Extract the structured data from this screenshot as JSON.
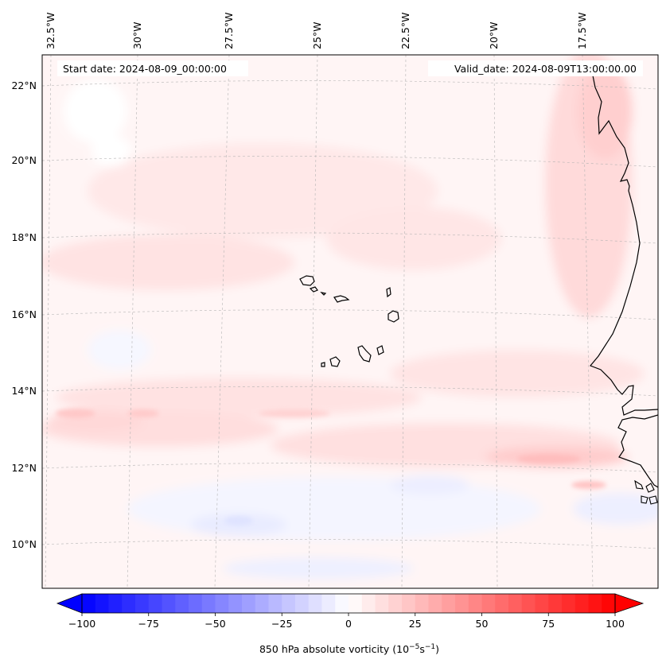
{
  "map": {
    "start_date_label": "Start date: 2024-08-09_00:00:00",
    "valid_date_label": "Valid_date: 2024-08-09T13:00:00.00",
    "field": "850 hPa absolute vorticity",
    "lon_labels": [
      "32.5°W",
      "30°W",
      "27.5°W",
      "25°W",
      "22.5°W",
      "20°W",
      "17.5°W"
    ],
    "lat_labels": [
      "22°N",
      "20°N",
      "18°N",
      "16°N",
      "14°N",
      "12°N",
      "10°N"
    ],
    "gridlines": "dashed",
    "coastline_color": "#000000"
  },
  "colorbar": {
    "label_prefix": "850 hPa absolute vorticity (10",
    "label_exp1": "−5",
    "label_mid": "s",
    "label_exp2": "−1",
    "label_suffix": ")",
    "ticks": [
      "−100",
      "−75",
      "−50",
      "−25",
      "0",
      "25",
      "50",
      "75",
      "100"
    ],
    "range": [
      -100,
      100
    ],
    "extend": "both",
    "colormap": "bwr",
    "low_color": "#0000ff",
    "mid_color": "#ffffff",
    "high_color": "#ff0000"
  }
}
